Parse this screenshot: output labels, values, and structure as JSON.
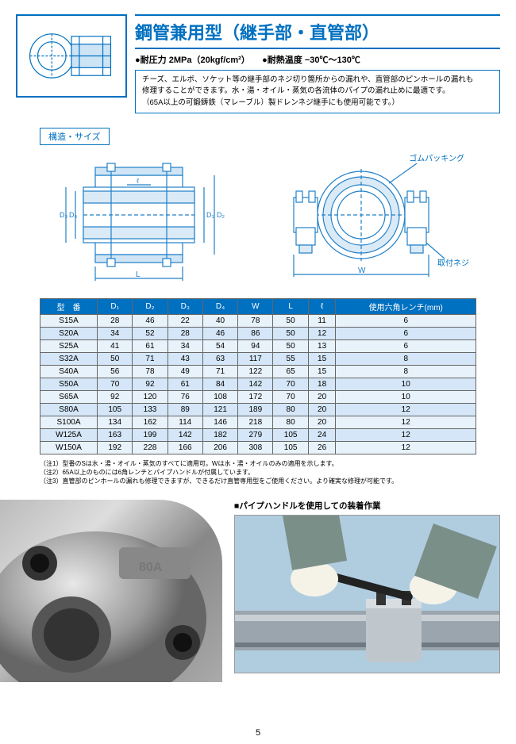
{
  "header": {
    "title": "鋼管兼用型（継手部・直管部）",
    "spec_pressure_label": "●耐圧力",
    "spec_pressure_value": "2MPa（20kgf/cm²）",
    "spec_temp_label": "●耐熱温度",
    "spec_temp_value": "−30℃〜130℃",
    "description_line1": "チーズ、エルボ、ソケット等の継手部のネジ切り箇所からの漏れや、直管部のピンホールの漏れも",
    "description_line2": "修理することができます。水・湯・オイル・蒸気の各流体のパイプの漏れ止めに最適です。",
    "description_line3": "（65A以上の可鍛鋳鉄（マレーブル）製ドレンネジ継手にも使用可能です。）"
  },
  "section_label": "構造・サイズ",
  "diagram_labels": {
    "rubber": "ゴムパッキング",
    "screw": "取付ネジ",
    "L": "L",
    "W": "W",
    "ell": "ℓ",
    "D1": "D₁",
    "D2": "D₂",
    "D3": "D₃",
    "D4": "D₄"
  },
  "table": {
    "background_header": "#0070c0",
    "row_bg_odd": "#e8f2fb",
    "row_bg_even": "#d4e6f7",
    "columns": [
      "型　番",
      "D₁",
      "D₂",
      "D₃",
      "D₄",
      "W",
      "L",
      "ℓ",
      "使用六角レンチ(mm)"
    ],
    "rows": [
      [
        "S15A",
        28,
        46,
        22,
        40,
        78,
        50,
        11,
        6
      ],
      [
        "S20A",
        34,
        52,
        28,
        46,
        86,
        50,
        12,
        6
      ],
      [
        "S25A",
        41,
        61,
        34,
        54,
        94,
        50,
        13,
        6
      ],
      [
        "S32A",
        50,
        71,
        43,
        63,
        117,
        55,
        15,
        8
      ],
      [
        "S40A",
        56,
        78,
        49,
        71,
        122,
        65,
        15,
        8
      ],
      [
        "S50A",
        70,
        92,
        61,
        84,
        142,
        70,
        18,
        10
      ],
      [
        "S65A",
        92,
        120,
        76,
        108,
        172,
        70,
        20,
        10
      ],
      [
        "S80A",
        105,
        133,
        89,
        121,
        189,
        80,
        20,
        12
      ],
      [
        "S100A",
        134,
        162,
        114,
        146,
        218,
        80,
        20,
        12
      ],
      [
        "W125A",
        163,
        199,
        142,
        182,
        279,
        105,
        24,
        12
      ],
      [
        "W150A",
        192,
        228,
        166,
        206,
        308,
        105,
        26,
        12
      ]
    ]
  },
  "notes": {
    "n1": "（注1）型番のSは水・湯・オイル・蒸気のすべてに適用可。Wは水・湯・オイルのみの適用を示します。",
    "n2": "（注2）65A以上のものには6角レンチとパイプハンドルが付属しています。",
    "n3": "（注3）直管部のピンホールの漏れも修理できますが、できるだけ直管専用型をご使用ください。より確実な修理が可能です。"
  },
  "photo_caption": "■パイプハンドルを使用しての装着作業",
  "page_number": "5",
  "colors": {
    "brand_blue": "#0070c0",
    "line_blue": "#2080c8"
  }
}
